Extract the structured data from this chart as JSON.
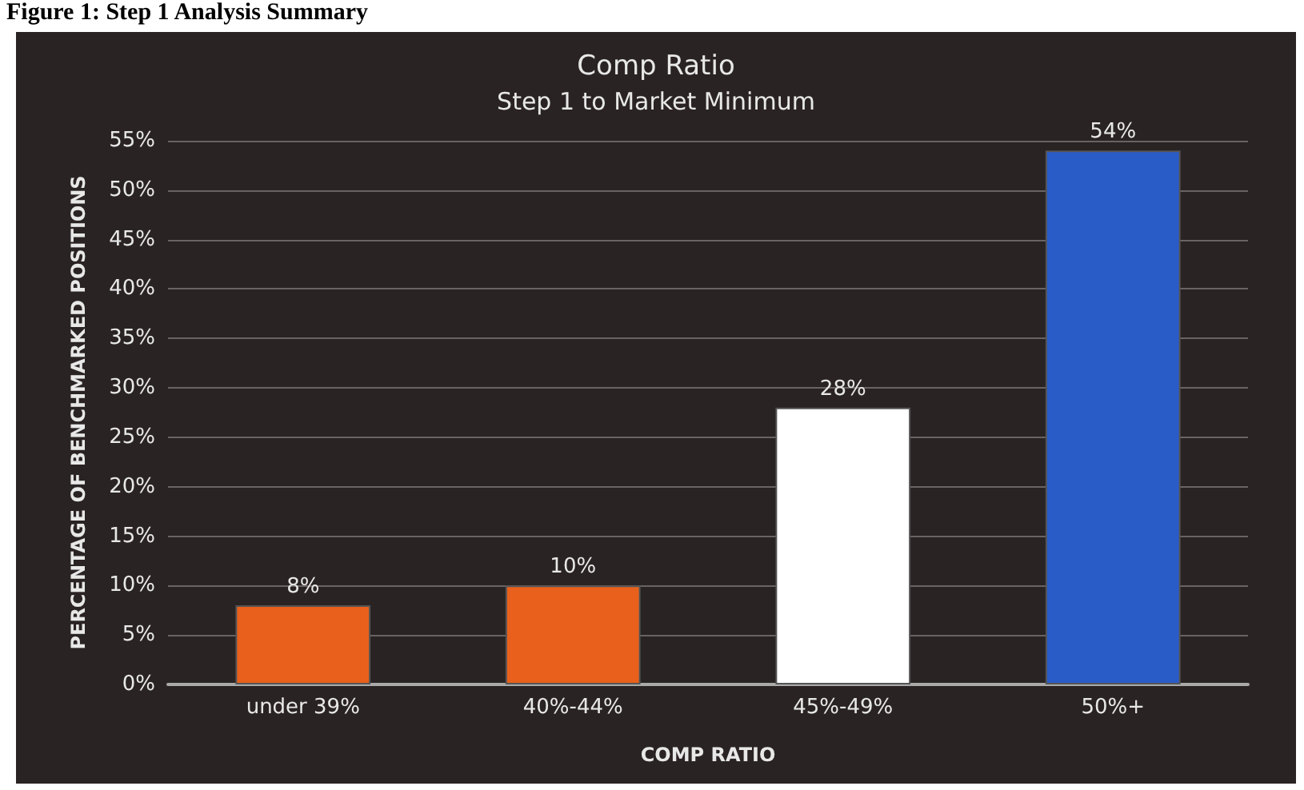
{
  "chart_data": {
    "type": "bar",
    "title": "Comp Ratio",
    "subtitle": "Step 1 to Market Minimum",
    "xlabel": "COMP RATIO",
    "ylabel": "PERCENTAGE OF BENCHMARKED POSITIONS",
    "annotations": [
      "Figure 1: Step 1 Analysis Summary"
    ],
    "categories": [
      "under 39%",
      "40%-44%",
      "45%-49%",
      "50%+"
    ],
    "values": [
      8,
      10,
      28,
      54
    ],
    "colors": [
      "#e8601c",
      "#e8601c",
      "#ffffff",
      "#2a5cc8"
    ],
    "value_labels": [
      "8%",
      "10%",
      "28%",
      "54%"
    ],
    "ylim": [
      0,
      55
    ],
    "yticks": [
      {
        "value": 0,
        "label": "0%"
      },
      {
        "value": 5,
        "label": "5%"
      },
      {
        "value": 10,
        "label": "10%"
      },
      {
        "value": 15,
        "label": "15%"
      },
      {
        "value": 20,
        "label": "20%"
      },
      {
        "value": 25,
        "label": "25%"
      },
      {
        "value": 30,
        "label": "30%"
      },
      {
        "value": 35,
        "label": "35%"
      },
      {
        "value": 40,
        "label": "40%"
      },
      {
        "value": 45,
        "label": "45%"
      },
      {
        "value": 50,
        "label": "50%"
      },
      {
        "value": 55,
        "label": "55%"
      }
    ],
    "grid": true
  }
}
